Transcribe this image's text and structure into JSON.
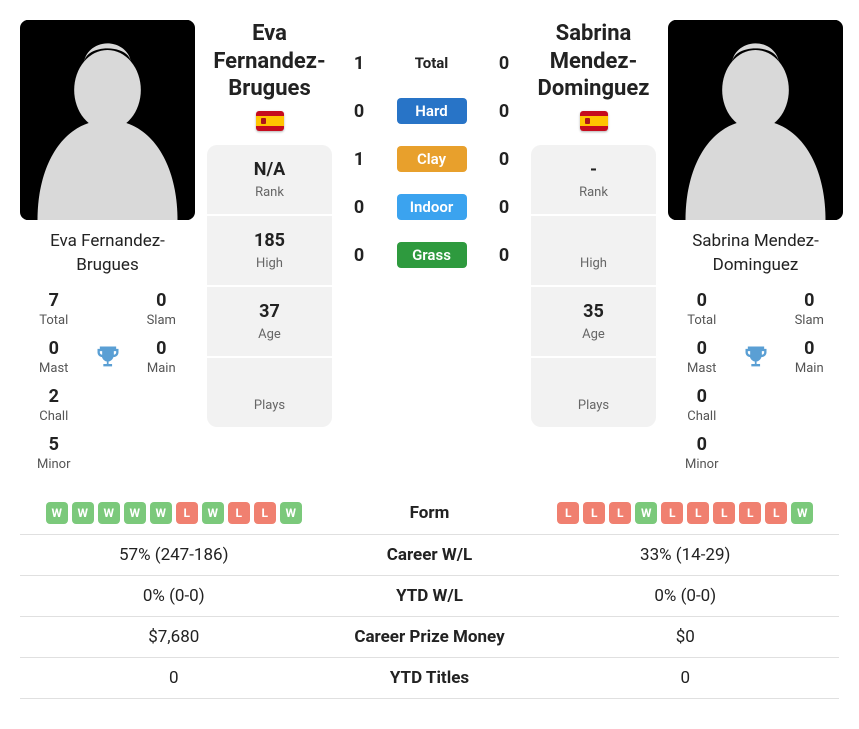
{
  "player1": {
    "name": "Eva Fernandez-Brugues",
    "country_flag": "flag-es",
    "titles": {
      "total": {
        "value": "7",
        "label": "Total"
      },
      "slam": {
        "value": "0",
        "label": "Slam"
      },
      "mast": {
        "value": "0",
        "label": "Mast"
      },
      "main": {
        "value": "0",
        "label": "Main"
      },
      "chall": {
        "value": "2",
        "label": "Chall"
      },
      "minor": {
        "value": "5",
        "label": "Minor"
      }
    },
    "info": {
      "rank": {
        "value": "N/A",
        "label": "Rank"
      },
      "high": {
        "value": "185",
        "label": "High"
      },
      "age": {
        "value": "37",
        "label": "Age"
      },
      "plays": {
        "value": "",
        "label": "Plays"
      }
    },
    "form": [
      "W",
      "W",
      "W",
      "W",
      "W",
      "L",
      "W",
      "L",
      "L",
      "W"
    ]
  },
  "player2": {
    "name": "Sabrina Mendez-Dominguez",
    "country_flag": "flag-es",
    "titles": {
      "total": {
        "value": "0",
        "label": "Total"
      },
      "slam": {
        "value": "0",
        "label": "Slam"
      },
      "mast": {
        "value": "0",
        "label": "Mast"
      },
      "main": {
        "value": "0",
        "label": "Main"
      },
      "chall": {
        "value": "0",
        "label": "Chall"
      },
      "minor": {
        "value": "0",
        "label": "Minor"
      }
    },
    "info": {
      "rank": {
        "value": "-",
        "label": "Rank"
      },
      "high": {
        "value": "",
        "label": "High"
      },
      "age": {
        "value": "35",
        "label": "Age"
      },
      "plays": {
        "value": "",
        "label": "Plays"
      }
    },
    "form": [
      "L",
      "L",
      "L",
      "W",
      "L",
      "L",
      "L",
      "L",
      "L",
      "W"
    ]
  },
  "h2h": {
    "rows": [
      {
        "p1": "1",
        "label": "Total",
        "p2": "0",
        "color": "",
        "plain": true
      },
      {
        "p1": "0",
        "label": "Hard",
        "p2": "0",
        "color": "#2874c7"
      },
      {
        "p1": "1",
        "label": "Clay",
        "p2": "0",
        "color": "#e8a02c"
      },
      {
        "p1": "0",
        "label": "Indoor",
        "p2": "0",
        "color": "#3ba3ef"
      },
      {
        "p1": "0",
        "label": "Grass",
        "p2": "0",
        "color": "#2e9a3e"
      }
    ]
  },
  "stats": {
    "form_label": "Form",
    "rows": [
      {
        "left": "57% (247-186)",
        "label": "Career W/L",
        "right": "33% (14-29)"
      },
      {
        "left": "0% (0-0)",
        "label": "YTD W/L",
        "right": "0% (0-0)"
      },
      {
        "left": "$7,680",
        "label": "Career Prize Money",
        "right": "$0"
      },
      {
        "left": "0",
        "label": "YTD Titles",
        "right": "0"
      }
    ]
  },
  "colors": {
    "form_win": "#7bc97b",
    "form_loss": "#f08070",
    "trophy": "#5a9fd4"
  }
}
